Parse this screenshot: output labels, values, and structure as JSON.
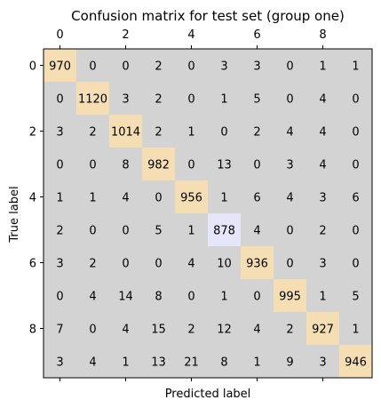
{
  "chart_data": {
    "type": "heatmap",
    "title": "Confusion matrix for test set (group one)",
    "xlabel": "Predicted label",
    "ylabel": "True label",
    "x_tick_labels": [
      "0",
      "2",
      "4",
      "6",
      "8"
    ],
    "y_tick_labels": [
      "0",
      "2",
      "4",
      "6",
      "8"
    ],
    "x_tick_positions": [
      0,
      2,
      4,
      6,
      8
    ],
    "y_tick_positions": [
      0,
      2,
      4,
      6,
      8
    ],
    "x_axis_position": "top",
    "matrix": [
      [
        970,
        0,
        0,
        2,
        0,
        3,
        3,
        0,
        1,
        1
      ],
      [
        0,
        1120,
        3,
        2,
        0,
        1,
        5,
        0,
        4,
        0
      ],
      [
        3,
        2,
        1014,
        2,
        1,
        0,
        2,
        4,
        4,
        0
      ],
      [
        0,
        0,
        8,
        982,
        0,
        13,
        0,
        3,
        4,
        0
      ],
      [
        1,
        1,
        4,
        0,
        956,
        1,
        6,
        4,
        3,
        6
      ],
      [
        2,
        0,
        0,
        5,
        1,
        878,
        4,
        0,
        2,
        0
      ],
      [
        3,
        2,
        0,
        0,
        4,
        10,
        936,
        0,
        3,
        0
      ],
      [
        0,
        4,
        14,
        8,
        0,
        1,
        0,
        995,
        1,
        5
      ],
      [
        7,
        0,
        4,
        15,
        2,
        12,
        4,
        2,
        927,
        1
      ],
      [
        3,
        4,
        1,
        13,
        21,
        8,
        1,
        9,
        3,
        946
      ]
    ],
    "colors": {
      "off_diagonal": "#d3d3d3",
      "diagonal": "#f5deb3",
      "diagonal_lowest": "#e6e6fa",
      "axes": "#000000",
      "text": "#000000"
    },
    "grid": false
  }
}
